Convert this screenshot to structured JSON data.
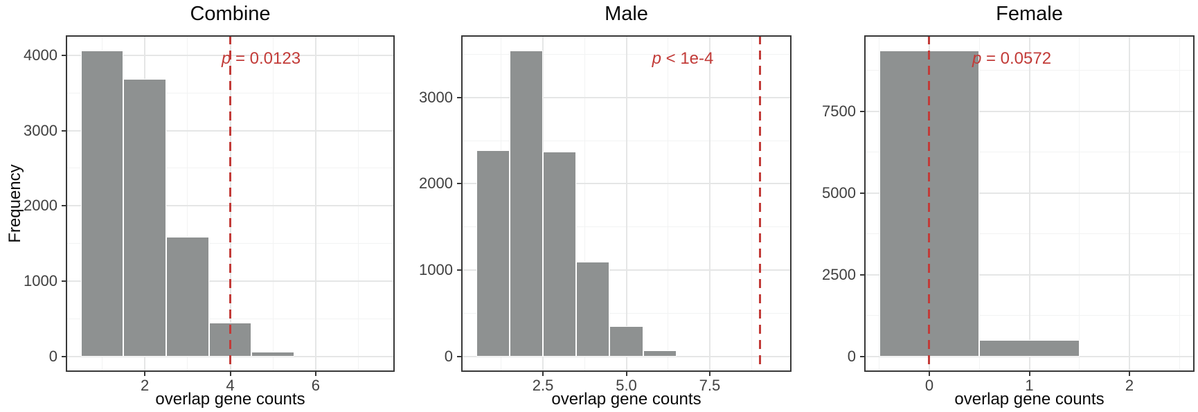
{
  "figure": {
    "y_axis_label": "Frequency",
    "x_axis_label": "overlap gene counts"
  },
  "chart_data": [
    {
      "type": "bar",
      "subtype": "histogram",
      "title": "Combine",
      "xlabel": "overlap gene counts",
      "ylabel": "Frequency",
      "bin_centers": [
        1,
        2,
        3,
        4,
        5
      ],
      "bin_width": 1,
      "counts": [
        4060,
        3690,
        1590,
        450,
        65
      ],
      "vline_x": 4,
      "p_label": "p = 0.0123",
      "xticks": [
        2,
        4,
        6
      ],
      "xtick_labels": [
        "2",
        "4",
        "6"
      ],
      "yticks": [
        0,
        1000,
        2000,
        3000,
        4000
      ],
      "ytick_labels": [
        "0",
        "1000",
        "2000",
        "3000",
        "4000"
      ],
      "xlim": [
        0.15,
        7.85
      ],
      "ylim": [
        -205,
        4265
      ],
      "grid": true,
      "legend": false
    },
    {
      "type": "bar",
      "subtype": "histogram",
      "title": "Male",
      "xlabel": "overlap gene counts",
      "ylabel": "Frequency",
      "bin_centers": [
        1,
        2,
        3,
        4,
        5,
        6
      ],
      "bin_width": 1,
      "counts": [
        2390,
        3540,
        2370,
        1100,
        350,
        70
      ],
      "vline_x": 9,
      "p_label": "p < 1e-4",
      "xticks": [
        2.5,
        5,
        7.5
      ],
      "xtick_labels": [
        "2.5",
        "5.0",
        "7.5"
      ],
      "yticks": [
        0,
        1000,
        2000,
        3000
      ],
      "ytick_labels": [
        "0",
        "1000",
        "2000",
        "3000"
      ],
      "xlim": [
        0.05,
        9.95
      ],
      "ylim": [
        -178,
        3720
      ],
      "grid": true,
      "legend": false
    },
    {
      "type": "bar",
      "subtype": "histogram",
      "title": "Female",
      "xlabel": "overlap gene counts",
      "ylabel": "Frequency",
      "bin_centers": [
        0,
        1
      ],
      "bin_width": 1,
      "counts": [
        9350,
        495
      ],
      "vline_x": 0,
      "p_label": "p = 0.0572",
      "xticks": [
        0,
        1,
        2
      ],
      "xtick_labels": [
        "0",
        "1",
        "2"
      ],
      "yticks": [
        0,
        2500,
        5000,
        7500
      ],
      "ytick_labels": [
        "0",
        "2500",
        "5000",
        "7500"
      ],
      "xlim": [
        -0.65,
        2.65
      ],
      "ylim": [
        -470,
        9820
      ],
      "grid": true,
      "legend": false
    }
  ],
  "colors": {
    "bar_fill": "#8E9191",
    "bar_border": "#FFFFFF",
    "vline_red": "#C23B38",
    "p_text_red": "#C23B38",
    "grid_major": "#E5E6E6",
    "grid_minor": "#F2F3F3",
    "panel_border": "#383838",
    "tick_mark": "#383838",
    "axis_text": "#404040",
    "title_text": "#0A0A0A"
  }
}
